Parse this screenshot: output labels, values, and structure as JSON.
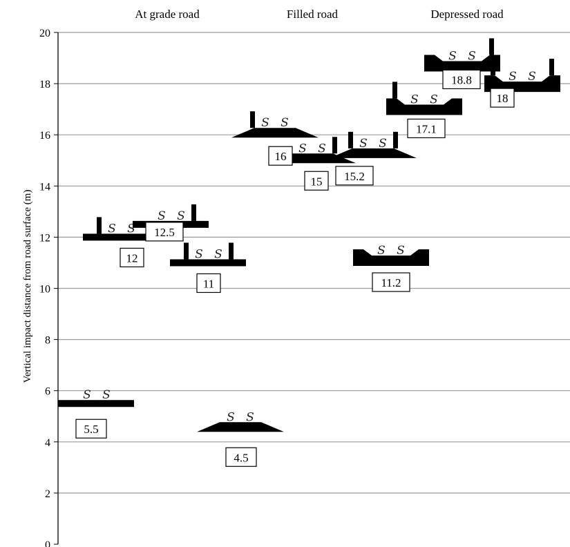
{
  "chart_data": {
    "type": "scatter",
    "categories": [
      "At grade road",
      "Filled road",
      "Depressed road"
    ],
    "ylabel": "Vertical impact distance from road surface (m)",
    "xlabel": "",
    "title": "",
    "ylim": [
      0,
      20
    ],
    "yticks": [
      "0",
      "2",
      "4",
      "6",
      "8",
      "10",
      "12",
      "14",
      "16",
      "18",
      "20"
    ],
    "grid": true,
    "series": [
      {
        "category": "At grade road",
        "points": [
          {
            "label": "5.5",
            "y": 5.5,
            "x_rank": 1,
            "cross_section": "flat-no-barrier"
          },
          {
            "label": "12",
            "y": 12,
            "x_rank": 2,
            "cross_section": "flat-barrier-left"
          },
          {
            "label": "12.5",
            "y": 12.5,
            "x_rank": 3,
            "cross_section": "flat-barrier-right"
          },
          {
            "label": "11",
            "y": 11,
            "x_rank": 4,
            "cross_section": "flat-barriers-both"
          },
          {
            "label": "4.5",
            "y": 4.5,
            "x_rank": 5,
            "cross_section": "filled-no-barrier"
          }
        ]
      },
      {
        "category": "Filled road",
        "points": [
          {
            "label": "16",
            "y": 16,
            "x_rank": 6,
            "cross_section": "filled-barrier-left"
          },
          {
            "label": "15",
            "y": 15,
            "x_rank": 7,
            "cross_section": "filled-barrier-right"
          },
          {
            "label": "15.2",
            "y": 15.2,
            "x_rank": 8,
            "cross_section": "filled-barriers-both"
          },
          {
            "label": "11.2",
            "y": 11.2,
            "x_rank": 9,
            "cross_section": "depressed-no-barrier"
          }
        ]
      },
      {
        "category": "Depressed road",
        "points": [
          {
            "label": "17.1",
            "y": 17.1,
            "x_rank": 10,
            "cross_section": "depressed-barrier-left"
          },
          {
            "label": "18.8",
            "y": 18.8,
            "x_rank": 11,
            "cross_section": "depressed-barrier-right"
          },
          {
            "label": "18",
            "y": 18,
            "x_rank": 12,
            "cross_section": "depressed-barriers-both"
          }
        ]
      }
    ],
    "source_symbol": "S",
    "colors": {
      "marker": "#000000",
      "grid": "#9a9a9a",
      "axis": "#000000"
    }
  }
}
